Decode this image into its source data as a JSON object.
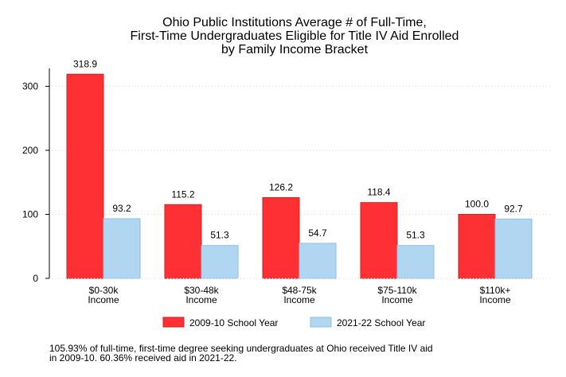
{
  "chart_data": {
    "type": "bar",
    "title_lines": [
      "Ohio Public Institutions Average # of Full-Time,",
      "First-Time Undergraduates Eligible for Title IV Aid Enrolled",
      "by Family Income Bracket"
    ],
    "categories": [
      [
        "$0-30k",
        "Income"
      ],
      [
        "$30-48k",
        "Income"
      ],
      [
        "$48-75k",
        "Income"
      ],
      [
        "$75-110k",
        "Income"
      ],
      [
        "$110k+",
        "Income"
      ]
    ],
    "series": [
      {
        "name": "2009-10 School Year",
        "color": "#ff3033",
        "stroke": "#cc2024",
        "values": [
          318.9,
          115.2,
          126.2,
          118.4,
          100.0
        ],
        "labels": [
          "318.9",
          "115.2",
          "126.2",
          "118.4",
          "100.0"
        ]
      },
      {
        "name": "2021-22 School Year",
        "color": "#b0d6f1",
        "stroke": "#8fbedf",
        "values": [
          93.2,
          51.3,
          54.7,
          51.3,
          92.7
        ],
        "labels": [
          "93.2",
          "51.3",
          "54.7",
          "51.3",
          "92.7"
        ]
      }
    ],
    "yticks": [
      "0",
      "100",
      "200",
      "300"
    ],
    "ylim": [
      0,
      330
    ],
    "grid": true,
    "legend_position": "bottom",
    "note_lines": [
      "105.93% of full-time, first-time degree seeking undergraduates at Ohio received Title IV aid",
      "in 2009-10. 60.36% received aid in 2021-22."
    ]
  }
}
